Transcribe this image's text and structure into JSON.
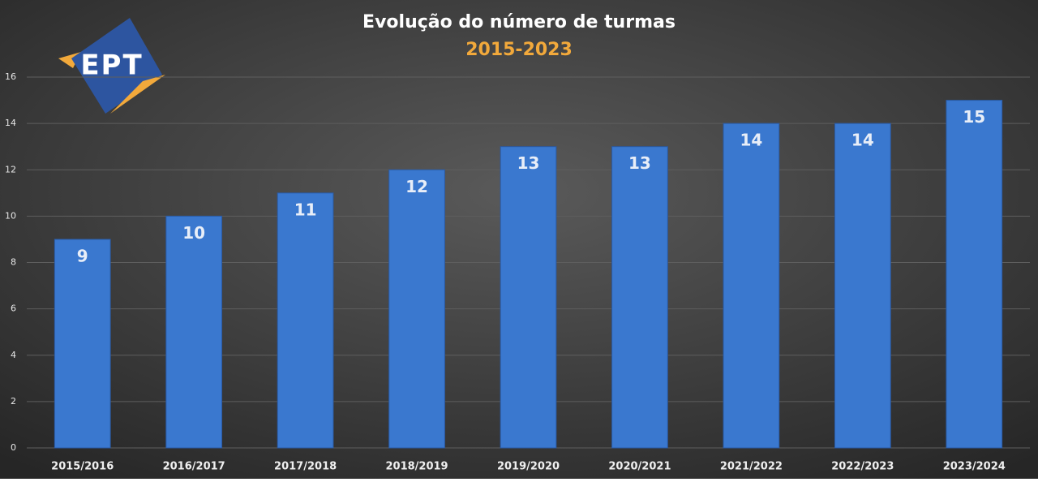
{
  "logo": "EPT",
  "chart_data": {
    "type": "bar",
    "title": "Evolução do número de turmas",
    "subtitle": "2015-2023",
    "categories": [
      "2015/2016",
      "2016/2017",
      "2017/2018",
      "2018/2019",
      "2019/2020",
      "2020/2021",
      "2021/2022",
      "2022/2023",
      "2023/2024"
    ],
    "values": [
      9,
      10,
      11,
      12,
      13,
      13,
      14,
      14,
      15
    ],
    "color": "#3a78cf",
    "ylim": [
      0,
      16
    ],
    "yticks": [
      0,
      2,
      4,
      6,
      8,
      10,
      12,
      14,
      16
    ],
    "grid": true
  }
}
